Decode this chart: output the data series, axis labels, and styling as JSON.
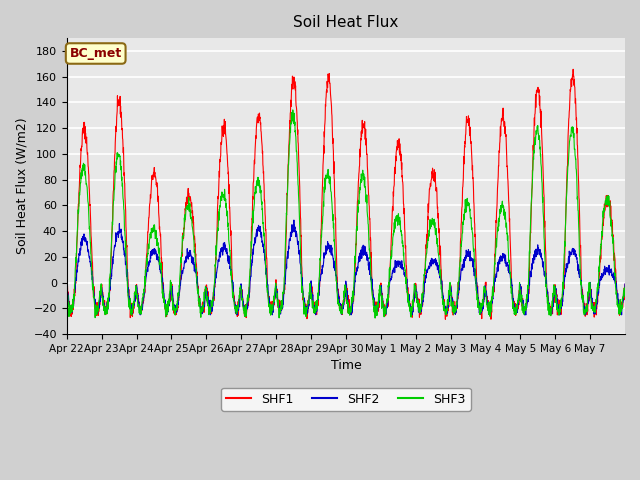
{
  "title": "Soil Heat Flux",
  "ylabel": "Soil Heat Flux (W/m2)",
  "xlabel": "Time",
  "ylim": [
    -40,
    190
  ],
  "yticks": [
    -40,
    -20,
    0,
    20,
    40,
    60,
    80,
    100,
    120,
    140,
    160,
    180
  ],
  "fig_bg_color": "#d0d0d0",
  "ax_bg_color": "#e8e8e8",
  "annotation": "BC_met",
  "legend": [
    "SHF1",
    "SHF2",
    "SHF3"
  ],
  "line_colors": [
    "#ff0000",
    "#0000cc",
    "#00cc00"
  ],
  "xtick_labels": [
    "Apr 22",
    "Apr 23",
    "Apr 24",
    "Apr 25",
    "Apr 26",
    "Apr 27",
    "Apr 28",
    "Apr 29",
    "Apr 30",
    "May 1",
    "May 2",
    "May 3",
    "May 4",
    "May 5",
    "May 6",
    "May 7"
  ],
  "shf1_peaks": [
    120,
    140,
    85,
    68,
    122,
    130,
    158,
    158,
    122,
    108,
    85,
    126,
    130,
    150,
    162,
    65
  ],
  "shf2_peaks": [
    35,
    40,
    25,
    22,
    28,
    42,
    43,
    28,
    25,
    15,
    18,
    22,
    20,
    25,
    25,
    10
  ],
  "shf3_peaks": [
    90,
    100,
    42,
    60,
    70,
    80,
    130,
    85,
    84,
    50,
    48,
    62,
    60,
    120,
    120,
    65
  ]
}
